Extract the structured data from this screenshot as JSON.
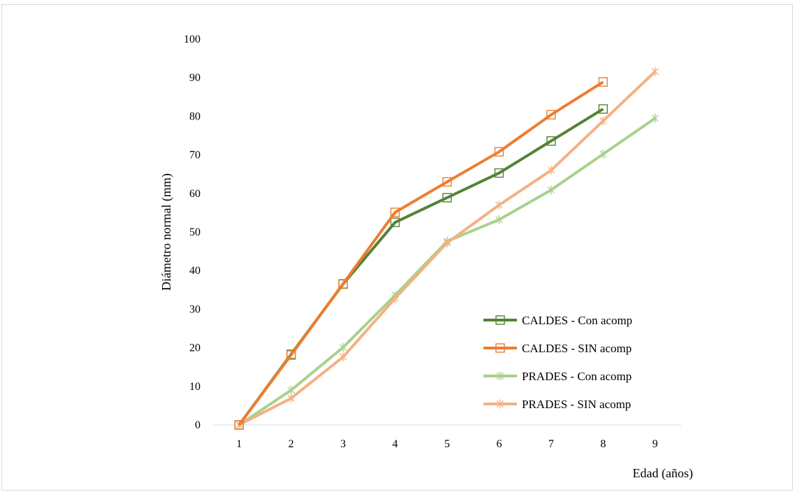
{
  "chart_data": {
    "type": "line",
    "xlabel": "Edad (años)",
    "ylabel": "Diámetro normal (mm)",
    "ylim": [
      0,
      100
    ],
    "yticks": [
      0,
      10,
      20,
      30,
      40,
      50,
      60,
      70,
      80,
      90,
      100
    ],
    "x": [
      1,
      2,
      3,
      4,
      5,
      6,
      7,
      8,
      9
    ],
    "grid": false,
    "legend_position": "bottom-right",
    "series": [
      {
        "name": "CALDES - Con acomp",
        "color": "#548235",
        "marker": "square",
        "values": [
          0,
          18.3,
          36.5,
          52.5,
          58.9,
          65.3,
          73.6,
          81.9,
          null
        ]
      },
      {
        "name": "CALDES - SIN acomp",
        "color": "#ED7D31",
        "marker": "square",
        "values": [
          0,
          18.1,
          36.6,
          55.1,
          63.0,
          70.8,
          80.4,
          88.9,
          null
        ]
      },
      {
        "name": "PRADES - Con acomp",
        "color": "#A9D18E",
        "marker": "star",
        "values": [
          0,
          9.0,
          20.1,
          33.6,
          47.6,
          53.2,
          60.9,
          70.2,
          79.5
        ]
      },
      {
        "name": "PRADES - SIN acomp",
        "color": "#F4B183",
        "marker": "star",
        "values": [
          0,
          6.9,
          17.6,
          32.8,
          47.2,
          57.0,
          66.0,
          78.8,
          91.6
        ]
      }
    ]
  }
}
